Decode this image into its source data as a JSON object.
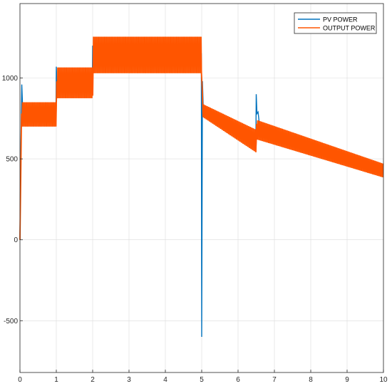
{
  "chart_data": {
    "type": "line",
    "xlim": [
      0,
      10
    ],
    "ylim": [
      -820,
      1460
    ],
    "x_ticks": [
      0,
      1,
      2,
      3,
      4,
      5,
      6,
      7,
      8,
      9,
      10
    ],
    "y_ticks": [
      -500,
      0,
      500,
      1000
    ],
    "x_tick_labels": [
      "0",
      "1",
      "2",
      "3",
      "4",
      "5",
      "6",
      "7",
      "8",
      "9",
      "10"
    ],
    "y_tick_labels": [
      "-500",
      "0",
      "500",
      "1000"
    ],
    "grid": true,
    "legend_position": "top-right",
    "series": [
      {
        "name": "PV POWER",
        "color": "#0072BD",
        "x": [
          0,
          0.02,
          0.05,
          0.08,
          0.5,
          0.99,
          1.0,
          1.02,
          1.05,
          1.5,
          1.99,
          2.0,
          2.02,
          2.05,
          3.0,
          4.0,
          4.99,
          5.0,
          5.02,
          5.05,
          5.1,
          5.5,
          6.0,
          6.49,
          6.5,
          6.52,
          6.55,
          6.6,
          7.0,
          8.0,
          9.0,
          10.0
        ],
        "values": [
          0,
          500,
          960,
          780,
          780,
          780,
          1070,
          950,
          970,
          970,
          970,
          1200,
          1130,
          1150,
          1150,
          1150,
          1150,
          -600,
          980,
          770,
          770,
          720,
          660,
          600,
          900,
          780,
          790,
          690,
          660,
          600,
          520,
          430
        ]
      },
      {
        "name": "OUTPUT POWER",
        "color": "#FF5500",
        "x": [
          0,
          0.02,
          0.05,
          1.0,
          1.02,
          2.0,
          2.02,
          5.0,
          5.02,
          6.5,
          6.52,
          10.0
        ],
        "upper": [
          0,
          500,
          850,
          850,
          1065,
          1065,
          1255,
          1255,
          840,
          680,
          740,
          470
        ],
        "lower": [
          0,
          350,
          700,
          700,
          875,
          875,
          1030,
          1030,
          760,
          540,
          620,
          385
        ]
      }
    ]
  }
}
